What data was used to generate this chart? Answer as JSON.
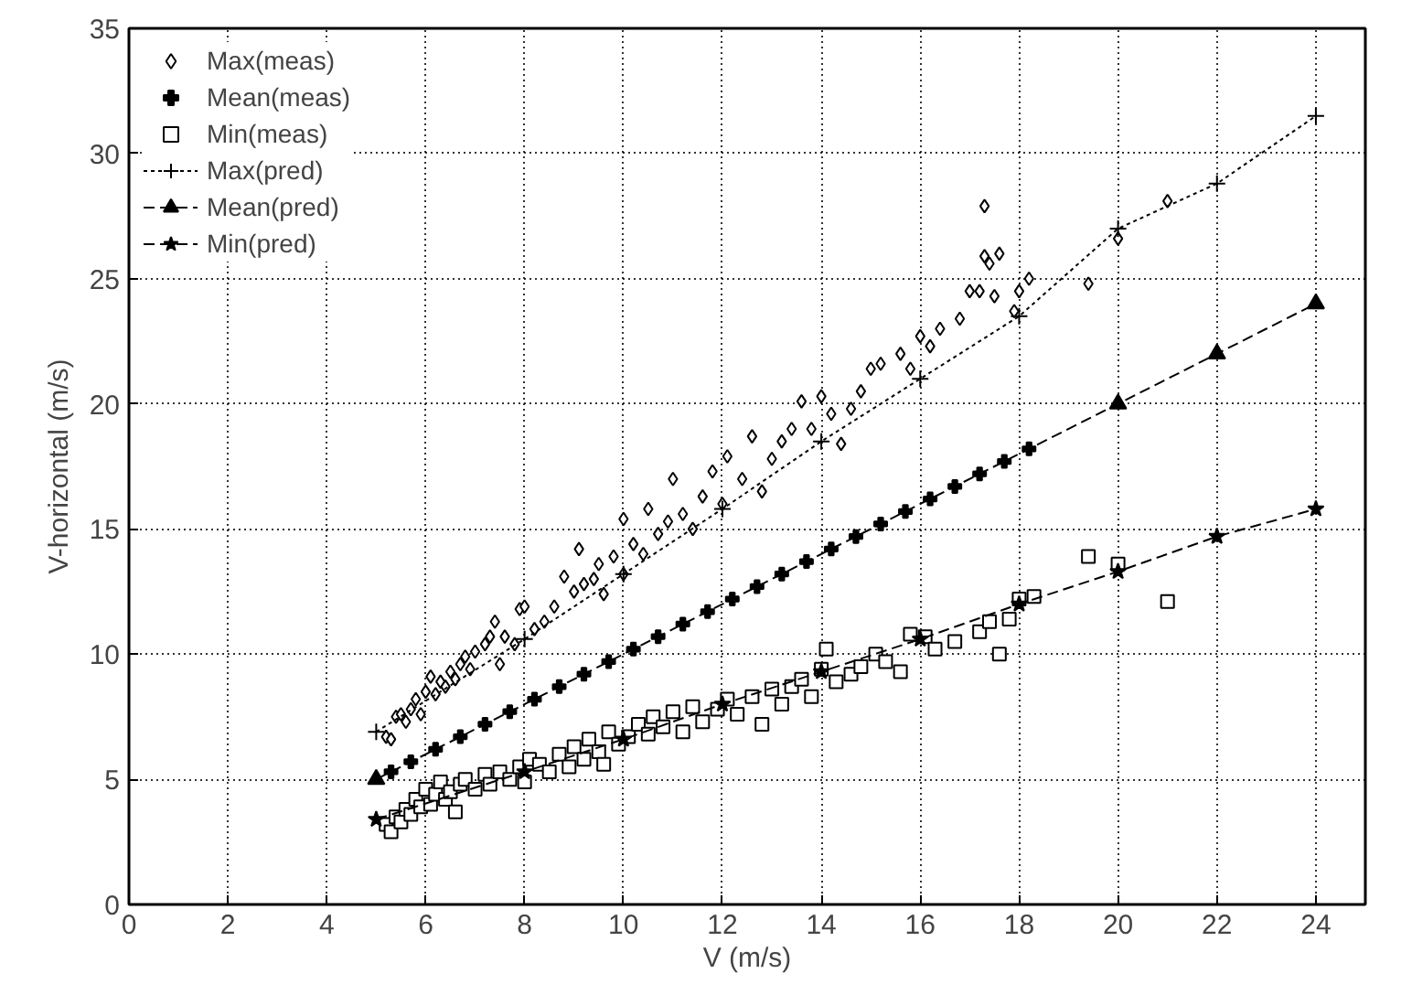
{
  "chart_data": {
    "type": "scatter",
    "xlabel": "V (m/s)",
    "ylabel": "V-horizontal (m/s)",
    "xlim": [
      0,
      25
    ],
    "ylim": [
      0,
      35
    ],
    "xticks": [
      0,
      2,
      4,
      6,
      8,
      10,
      12,
      14,
      16,
      18,
      20,
      22,
      24
    ],
    "yticks": [
      0,
      5,
      10,
      15,
      20,
      25,
      30,
      35
    ],
    "grid": true,
    "legend": "top left",
    "series": [
      {
        "name": "Max(meas)",
        "color": "#000000",
        "marker": "diamond",
        "x": [
          5.2,
          5.3,
          5.4,
          5.5,
          5.6,
          5.7,
          5.8,
          5.9,
          6.0,
          6.1,
          6.2,
          6.3,
          6.4,
          6.5,
          6.6,
          6.7,
          6.8,
          6.9,
          7.0,
          7.2,
          7.3,
          7.4,
          7.5,
          7.6,
          7.8,
          7.9,
          8.0,
          8.2,
          8.4,
          8.6,
          8.8,
          9.0,
          9.1,
          9.2,
          9.4,
          9.5,
          9.6,
          9.8,
          10.0,
          10.0,
          10.2,
          10.4,
          10.5,
          10.7,
          10.9,
          11.0,
          11.2,
          11.4,
          11.6,
          11.8,
          12.0,
          12.1,
          12.4,
          12.6,
          12.8,
          13.0,
          13.2,
          13.4,
          13.6,
          13.8,
          14.0,
          14.2,
          14.4,
          14.6,
          14.8,
          15.0,
          15.2,
          15.6,
          15.8,
          16.0,
          16.2,
          16.4,
          16.8,
          17.0,
          17.2,
          17.3,
          17.4,
          17.5,
          17.6,
          17.3,
          17.9,
          18.0,
          18.2,
          19.4,
          20.0,
          21.0
        ],
        "values": [
          6.7,
          6.6,
          7.5,
          7.6,
          7.3,
          7.8,
          8.2,
          7.6,
          8.5,
          9.1,
          8.4,
          8.9,
          8.7,
          9.3,
          9.0,
          9.6,
          9.9,
          9.4,
          10.1,
          10.4,
          10.7,
          11.3,
          9.6,
          10.7,
          10.4,
          11.8,
          11.9,
          11.0,
          11.3,
          11.9,
          13.1,
          12.5,
          14.2,
          12.8,
          13.0,
          13.6,
          12.4,
          13.9,
          13.2,
          15.4,
          14.4,
          14.0,
          15.8,
          14.8,
          15.3,
          17.0,
          15.6,
          15.0,
          16.3,
          17.3,
          16.0,
          17.9,
          17.0,
          18.7,
          16.5,
          17.8,
          18.5,
          19.0,
          20.1,
          19.0,
          20.3,
          19.6,
          18.4,
          19.8,
          20.5,
          21.4,
          21.6,
          22.0,
          21.4,
          22.7,
          22.3,
          23.0,
          23.4,
          24.5,
          24.5,
          25.9,
          25.6,
          24.3,
          26.0,
          27.9,
          23.7,
          24.5,
          25.0,
          24.8,
          26.6,
          28.1
        ]
      },
      {
        "name": "Mean(meas)",
        "color": "#000000",
        "marker": "cross",
        "x": [
          5.3,
          5.7,
          6.2,
          6.7,
          7.2,
          7.7,
          8.2,
          8.7,
          9.2,
          9.7,
          10.2,
          10.7,
          11.2,
          11.7,
          12.2,
          12.7,
          13.2,
          13.7,
          14.2,
          14.7,
          15.2,
          15.7,
          16.2,
          16.7,
          17.2,
          17.7,
          18.2
        ],
        "values": [
          5.3,
          5.7,
          6.2,
          6.7,
          7.2,
          7.7,
          8.2,
          8.7,
          9.2,
          9.7,
          10.2,
          10.7,
          11.2,
          11.7,
          12.2,
          12.7,
          13.2,
          13.7,
          14.2,
          14.7,
          15.2,
          15.7,
          16.2,
          16.7,
          17.2,
          17.7,
          18.2
        ]
      },
      {
        "name": "Min(meas)",
        "color": "#000000",
        "marker": "square",
        "x": [
          5.2,
          5.3,
          5.4,
          5.5,
          5.6,
          5.7,
          5.8,
          5.9,
          6.0,
          6.1,
          6.2,
          6.3,
          6.4,
          6.5,
          6.6,
          6.7,
          6.8,
          7.0,
          7.2,
          7.3,
          7.5,
          7.7,
          7.9,
          8.0,
          8.1,
          8.3,
          8.5,
          8.7,
          8.9,
          9.0,
          9.2,
          9.3,
          9.5,
          9.6,
          9.7,
          9.9,
          10.1,
          10.3,
          10.5,
          10.6,
          10.8,
          11.0,
          11.2,
          11.4,
          11.6,
          11.9,
          12.1,
          12.3,
          12.6,
          12.8,
          13.0,
          13.2,
          13.4,
          13.6,
          13.8,
          14.0,
          14.1,
          14.3,
          14.6,
          14.8,
          15.1,
          15.3,
          15.6,
          15.8,
          16.1,
          16.3,
          16.7,
          17.2,
          17.4,
          17.6,
          17.8,
          18.0,
          18.3,
          19.4,
          20.0,
          21.0
        ],
        "values": [
          3.2,
          2.9,
          3.5,
          3.3,
          3.8,
          3.6,
          4.2,
          3.9,
          4.6,
          4.0,
          4.4,
          4.9,
          4.2,
          4.5,
          3.7,
          4.8,
          5.0,
          4.6,
          5.2,
          4.8,
          5.3,
          5.0,
          5.5,
          4.9,
          5.8,
          5.6,
          5.3,
          6.0,
          5.5,
          6.3,
          5.8,
          6.6,
          6.1,
          5.6,
          6.9,
          6.4,
          6.7,
          7.2,
          6.8,
          7.5,
          7.1,
          7.7,
          6.9,
          7.9,
          7.3,
          7.8,
          8.2,
          7.6,
          8.3,
          7.2,
          8.6,
          8.0,
          8.7,
          9.0,
          8.3,
          9.4,
          10.2,
          8.9,
          9.2,
          9.5,
          10.0,
          9.7,
          9.3,
          10.8,
          10.7,
          10.2,
          10.5,
          10.9,
          11.3,
          10.0,
          11.4,
          12.2,
          12.3,
          13.9,
          13.6,
          12.1
        ]
      },
      {
        "name": "Max(pred)",
        "color": "#000000",
        "type": "line",
        "marker": "cross",
        "line_style": "dotted",
        "x": [
          5,
          8,
          10,
          12,
          14,
          16,
          18,
          20,
          22,
          24
        ],
        "values": [
          6.9,
          10.6,
          13.2,
          15.8,
          18.5,
          21.0,
          23.5,
          27.0,
          28.8,
          31.5
        ]
      },
      {
        "name": "Mean(pred)",
        "color": "#000000",
        "type": "line",
        "marker": "triangle",
        "line_style": "dashed",
        "x": [
          5,
          20,
          22,
          24
        ],
        "values": [
          5,
          20,
          22,
          24
        ]
      },
      {
        "name": "Min(pred)",
        "color": "#000000",
        "type": "line",
        "marker": "star",
        "line_style": "dashed",
        "x": [
          5,
          8,
          10,
          12,
          14,
          16,
          18,
          20,
          22,
          24
        ],
        "values": [
          3.4,
          5.3,
          6.6,
          8.0,
          9.3,
          10.6,
          12.0,
          13.3,
          14.7,
          15.8
        ]
      }
    ]
  }
}
